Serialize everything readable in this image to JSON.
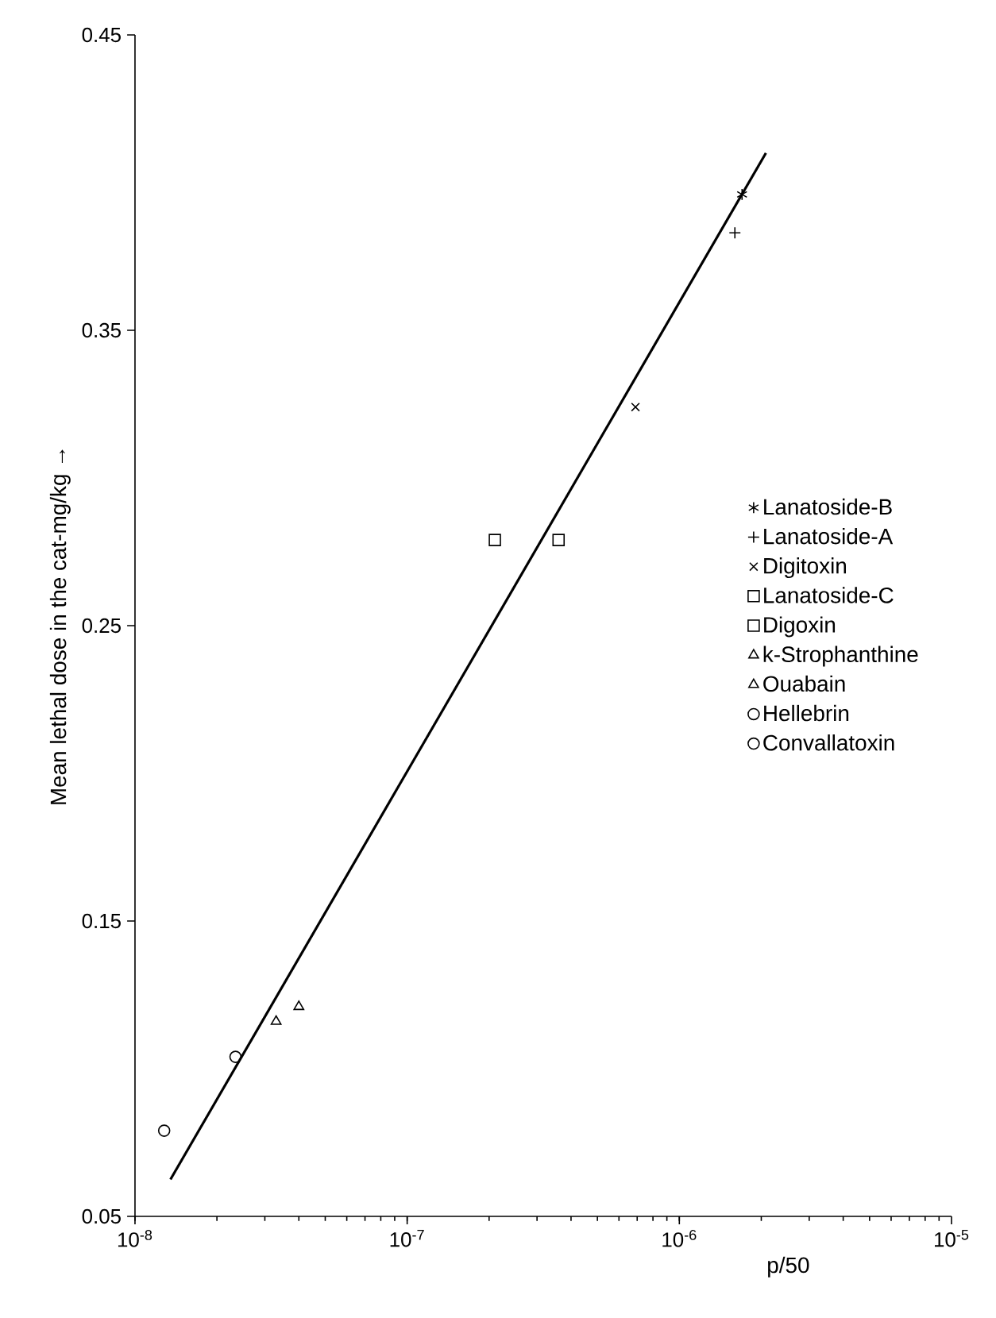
{
  "chart_data": {
    "type": "scatter",
    "xlabel": "p/50",
    "ylabel": "Mean lethal dose in the cat-mg/kg →",
    "log": "x",
    "legend": "right",
    "xlim": [
      1e-08,
      1e-05
    ],
    "xticks": [
      {
        "value": 1e-08,
        "label": "10$^{-8}$"
      },
      {
        "value": 1e-07,
        "label": "10$^{-7}$"
      },
      {
        "value": 1e-06,
        "label": "10$^{-6}$"
      },
      {
        "value": 1e-05,
        "label": "10$^{-5}$"
      }
    ],
    "ylim": [
      0.05,
      0.45
    ],
    "yticks": [
      0.05,
      0.15,
      0.25,
      0.35,
      0.45
    ],
    "series": [
      {
        "name": "Lanatoside-B",
        "color": "#000000",
        "x": [
          1.7e-06
        ],
        "values": [
          0.396
        ]
      },
      {
        "name": "Lanatoside-A",
        "color": "#000000",
        "marker": "plus",
        "x": [
          1.6e-06
        ],
        "values": [
          0.383
        ]
      },
      {
        "name": "Digitoxin",
        "color": "#000000",
        "marker": "cross",
        "x": [
          6.9e-07
        ],
        "values": [
          0.324
        ]
      },
      {
        "name": "Lanatoside-C",
        "color": "#000000",
        "marker": "square",
        "x": [
          3.6e-07
        ],
        "values": [
          0.279
        ]
      },
      {
        "name": "Digoxin",
        "color": "#000000",
        "marker": "square",
        "x": [
          2.1e-07
        ],
        "values": [
          0.279
        ]
      },
      {
        "name": "k-Strophanthine",
        "color": "#000000",
        "marker": "triangle",
        "x": [
          4e-08
        ],
        "values": [
          0.121
        ]
      },
      {
        "name": "Ouabain",
        "color": "#000000",
        "marker": "triangle",
        "x": [
          3.3e-08
        ],
        "values": [
          0.116
        ]
      },
      {
        "name": "Hellebrin",
        "color": "#000000",
        "marker": "circle",
        "x": [
          2.34e-08
        ],
        "values": [
          0.104
        ]
      },
      {
        "name": "Convallatoxin",
        "color": "#000000",
        "marker": "circle",
        "x": [
          1.28e-08
        ],
        "values": [
          0.079
        ]
      },
      {
        "type": "line",
        "color": "#000000",
        "line_style": "solid",
        "marker": "none",
        "x": [
          1.35e-08,
          2.08e-06
        ],
        "values": [
          0.0625,
          0.41
        ]
      }
    ]
  }
}
